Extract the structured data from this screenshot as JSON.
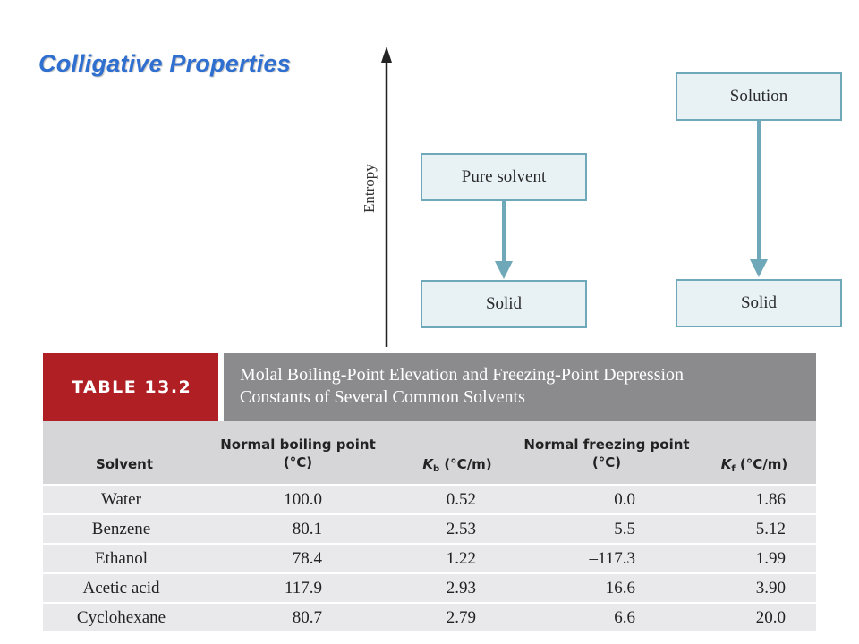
{
  "slide": {
    "title": "Colligative Properties"
  },
  "diagram": {
    "axis_label": "Entropy",
    "left_top_box": "Pure solvent",
    "left_bottom_box": "Solid",
    "right_top_box": "Solution",
    "right_bottom_box": "Solid",
    "box_fill": "#e8f2f5",
    "box_border": "#6fa9b9",
    "arrow_color": "#6fa9b9"
  },
  "table": {
    "number": "TABLE 13.2",
    "caption_line1": "Molal Boiling-Point Elevation and Freezing-Point Depression",
    "caption_line2": "Constants of Several Common Solvents",
    "columns": {
      "solvent": "Solvent",
      "bp_line1": "Normal boiling point",
      "bp_line2": "(°C)",
      "kb_symbol": "K",
      "kb_sub": "b",
      "kb_units": " (°C/m)",
      "fp_line1": "Normal freezing point",
      "fp_line2": "(°C)",
      "kf_symbol": "K",
      "kf_sub": "f",
      "kf_units": " (°C/m)"
    },
    "rows": [
      {
        "solvent": "Water",
        "bp": "100.0",
        "kb": "0.52",
        "fp": "0.0",
        "kf": "1.86"
      },
      {
        "solvent": "Benzene",
        "bp": "80.1",
        "kb": "2.53",
        "fp": "5.5",
        "kf": "5.12"
      },
      {
        "solvent": "Ethanol",
        "bp": "78.4",
        "kb": "1.22",
        "fp": "–117.3",
        "kf": "1.99"
      },
      {
        "solvent": "Acetic acid",
        "bp": "117.9",
        "kb": "2.93",
        "fp": "16.6",
        "kf": "3.90"
      },
      {
        "solvent": "Cyclohexane",
        "bp": "80.7",
        "kb": "2.79",
        "fp": "6.6",
        "kf": "20.0"
      }
    ],
    "number_bg": "#b01f24",
    "caption_bg": "#8b8b8e",
    "header_bg": "#d6d6d8",
    "row_bg": "#e9e9eb"
  }
}
